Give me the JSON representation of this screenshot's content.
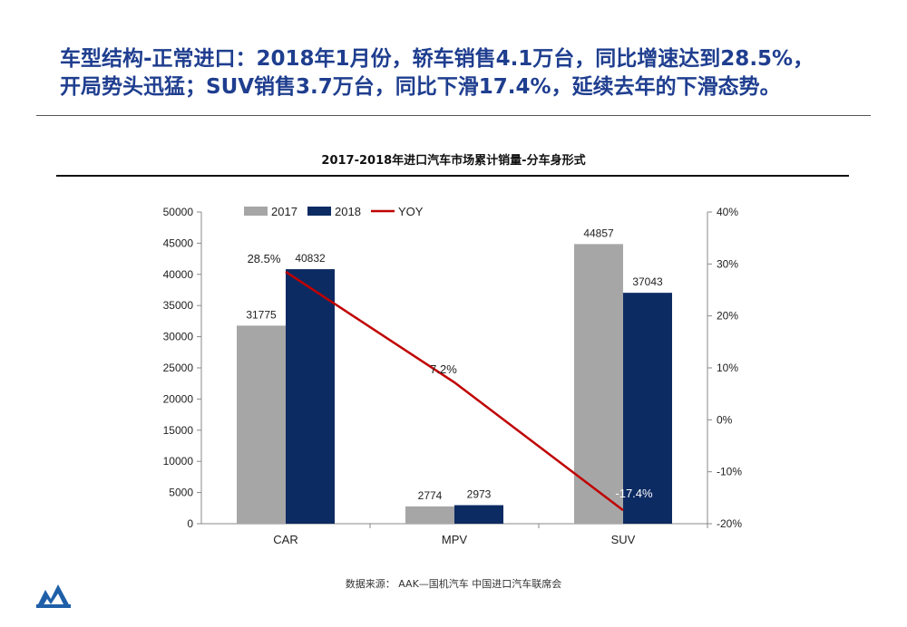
{
  "headline": {
    "line1": "车型结构-正常进口：2018年1月份，轿车销售4.1万台，同比增速达到28.5%，",
    "line2": "开局势头迅猛；SUV销售3.7万台，同比下滑17.4%，延续去年的下滑态势。"
  },
  "source": "数据来源： AAK—国机汽车 中国进口汽车联席会",
  "colors": {
    "headline": "#1f3e8f",
    "series_2017": "#a6a6a6",
    "series_2018": "#0d2b63",
    "yoy_line": "#c00000"
  },
  "chart_data": {
    "type": "bar",
    "title": "2017-2018年进口汽车市场累计销量-分车身形式",
    "categories": [
      "CAR",
      "MPV",
      "SUV"
    ],
    "series": [
      {
        "name": "2017",
        "values": [
          31775,
          2774,
          44857
        ]
      },
      {
        "name": "2018",
        "values": [
          40832,
          2973,
          37043
        ]
      }
    ],
    "line_series": {
      "name": "YOY",
      "values": [
        28.5,
        7.2,
        -17.4
      ],
      "labels": [
        "28.5%",
        "7.2%",
        "-17.4%"
      ],
      "axis": "right"
    },
    "y_left": {
      "ylim": [
        0,
        50000
      ],
      "ticks": [
        0,
        5000,
        10000,
        15000,
        20000,
        25000,
        30000,
        35000,
        40000,
        45000,
        50000
      ]
    },
    "y_right": {
      "ylim": [
        -20,
        40
      ],
      "ticks": [
        "-20%",
        "-10%",
        "0%",
        "10%",
        "20%",
        "30%",
        "40%"
      ]
    },
    "legend": "top",
    "grid": false
  }
}
